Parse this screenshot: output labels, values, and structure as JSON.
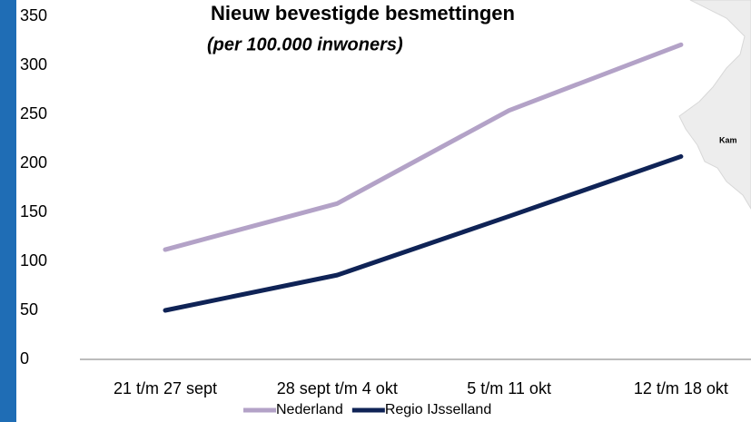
{
  "chart_data": {
    "type": "line",
    "title": "Nieuw bevestigde besmettingen",
    "subtitle": "(per 100.000 inwoners)",
    "map_label": "Kam",
    "categories": [
      "21 t/m 27 sept",
      "28 sept t/m 4 okt",
      "5 t/m 11 okt",
      "12 t/m 18 okt"
    ],
    "series": [
      {
        "name": "Nederland",
        "color": "#b3a2c7",
        "values": [
          112,
          159,
          254,
          321
        ]
      },
      {
        "name": "Regio IJsselland",
        "color": "#0f2356",
        "values": [
          50,
          86,
          146,
          207
        ]
      }
    ],
    "ylim": [
      0,
      350
    ],
    "yticks": [
      0,
      50,
      100,
      150,
      200,
      250,
      300,
      350
    ],
    "grid": false,
    "legend": "bottom"
  }
}
